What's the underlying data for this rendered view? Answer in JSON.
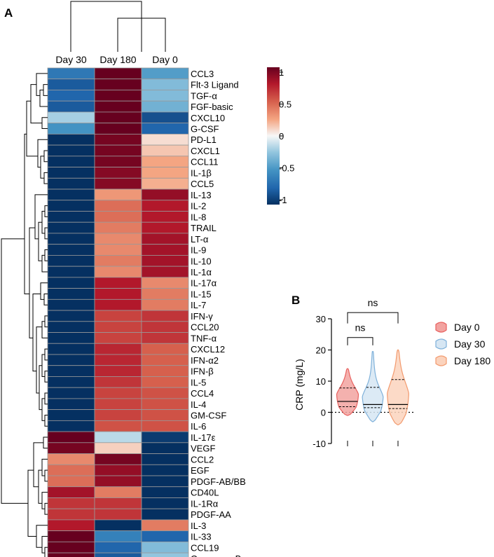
{
  "panels": {
    "A": {
      "label": "A"
    },
    "B": {
      "label": "B"
    }
  },
  "chart_data": [
    {
      "type": "heatmap",
      "title": "",
      "columns": [
        "Day 30",
        "Day 180",
        "Day 0"
      ],
      "rows": [
        "CCL3",
        "Flt-3 Ligand",
        "TGF-α",
        "FGF-basic",
        "CXCL10",
        "G-CSF",
        "PD-L1",
        "CXCL1",
        "CCL11",
        "IL-1β",
        "CCL5",
        "IL-13",
        "IL-2",
        "IL-8",
        "TRAIL",
        "LT-α",
        "IL-9",
        "IL-10",
        "IL-1α",
        "IL-17α",
        "IL-15",
        "IL-7",
        "IFN-γ",
        "CCL20",
        "TNF-α",
        "CXCL12",
        "IFN-α2",
        "IFN-β",
        "IL-5",
        "CCL4",
        "IL-4",
        "GM-CSF",
        "IL-6",
        "IL-17ε",
        "VEGF",
        "CCL2",
        "EGF",
        "PDGF-AB/BB",
        "CD40L",
        "IL-1Rα",
        "PDGF-AA",
        "IL-3",
        "IL-33",
        "CCL19",
        "Granzyme B"
      ],
      "values": [
        [
          -0.65,
          1.0,
          -0.45
        ],
        [
          -0.8,
          1.0,
          -0.3
        ],
        [
          -0.75,
          1.0,
          -0.3
        ],
        [
          -0.8,
          1.0,
          -0.35
        ],
        [
          -0.2,
          1.0,
          -0.85
        ],
        [
          -0.5,
          1.0,
          -0.75
        ],
        [
          -1.0,
          0.95,
          0.08
        ],
        [
          -1.0,
          0.95,
          0.15
        ],
        [
          -1.0,
          0.95,
          0.25
        ],
        [
          -1.0,
          0.9,
          0.25
        ],
        [
          -1.0,
          0.9,
          0.22
        ],
        [
          -1.0,
          0.3,
          0.85
        ],
        [
          -1.0,
          0.45,
          0.75
        ],
        [
          -1.0,
          0.45,
          0.75
        ],
        [
          -1.0,
          0.4,
          0.75
        ],
        [
          -1.0,
          0.35,
          0.8
        ],
        [
          -1.0,
          0.35,
          0.8
        ],
        [
          -1.0,
          0.4,
          0.8
        ],
        [
          -1.0,
          0.35,
          0.8
        ],
        [
          -1.0,
          0.75,
          0.35
        ],
        [
          -1.0,
          0.75,
          0.4
        ],
        [
          -1.0,
          0.75,
          0.4
        ],
        [
          -1.0,
          0.6,
          0.65
        ],
        [
          -1.0,
          0.6,
          0.65
        ],
        [
          -1.0,
          0.6,
          0.65
        ],
        [
          -1.0,
          0.7,
          0.5
        ],
        [
          -1.0,
          0.7,
          0.5
        ],
        [
          -1.0,
          0.7,
          0.5
        ],
        [
          -1.0,
          0.65,
          0.5
        ],
        [
          -1.0,
          0.6,
          0.55
        ],
        [
          -1.0,
          0.6,
          0.55
        ],
        [
          -1.0,
          0.6,
          0.55
        ],
        [
          -1.0,
          0.55,
          0.55
        ],
        [
          1.0,
          -0.15,
          -0.95
        ],
        [
          0.95,
          0.12,
          -1.0
        ],
        [
          0.35,
          0.95,
          -1.0
        ],
        [
          0.45,
          0.85,
          -1.0
        ],
        [
          0.45,
          0.85,
          -1.0
        ],
        [
          0.8,
          0.4,
          -1.0
        ],
        [
          0.65,
          0.65,
          -1.0
        ],
        [
          0.65,
          0.65,
          -1.0
        ],
        [
          0.75,
          -1.0,
          0.4
        ],
        [
          1.0,
          -0.6,
          -0.75
        ],
        [
          1.0,
          -0.75,
          -0.3
        ],
        [
          1.0,
          -0.8,
          -0.25
        ]
      ],
      "colorbar": {
        "ticks": [
          "1",
          "0.5",
          "0",
          "-0.5",
          "-1"
        ],
        "range": [
          -1,
          1
        ]
      }
    },
    {
      "type": "violin",
      "ylabel": "CRP (mg/L)",
      "ylim": [
        -10,
        30
      ],
      "yticks": [
        "30",
        "20",
        "10",
        "0",
        "-10"
      ],
      "significance": [
        "ns",
        "ns"
      ],
      "series": [
        {
          "name": "Day 0",
          "color": "#e8615f",
          "fill": "#f2a3a0",
          "min": -1,
          "max": 14,
          "median": 3.5,
          "q1": 1.8,
          "q3": 7.8
        },
        {
          "name": "Day 30",
          "color": "#7fb1da",
          "fill": "#d6e6f3",
          "min": -3,
          "max": 19.5,
          "median": 2.5,
          "q1": 1.5,
          "q3": 8
        },
        {
          "name": "Day 180",
          "color": "#f29a6e",
          "fill": "#fbd3bd",
          "min": -4,
          "max": 20,
          "median": 2.5,
          "q1": 1.2,
          "q3": 10.5
        }
      ]
    }
  ]
}
